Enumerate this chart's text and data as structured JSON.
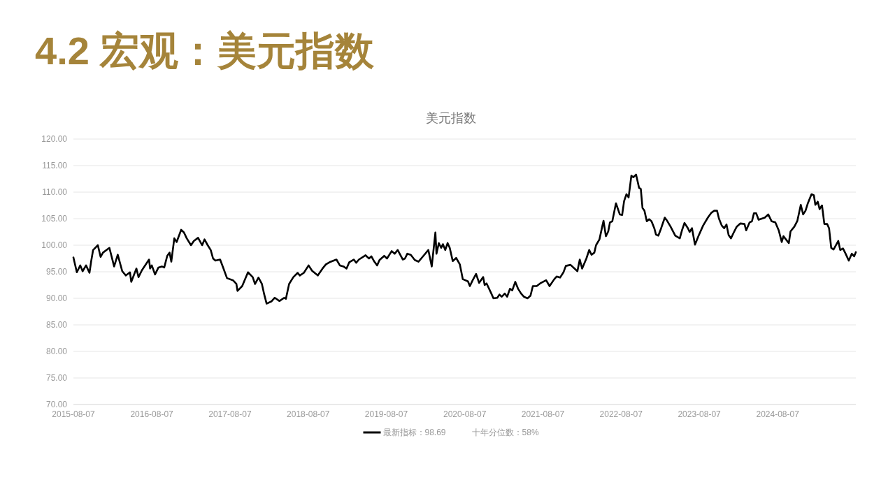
{
  "chart_data": {
    "type": "line",
    "title": "4.2 宏观：美元指数",
    "subtitle": "美元指数",
    "x": [
      "2015-08-07",
      "2015-08-23",
      "2015-09-08",
      "2015-09-19",
      "2015-10-05",
      "2015-10-21",
      "2015-10-29",
      "2015-11-07",
      "2015-11-29",
      "2015-12-12",
      "2015-12-23",
      "2016-01-22",
      "2016-02-13",
      "2016-03-01",
      "2016-03-22",
      "2016-04-08",
      "2016-04-27",
      "2016-05-03",
      "2016-05-27",
      "2016-06-06",
      "2016-06-22",
      "2016-07-25",
      "2016-07-30",
      "2016-08-07",
      "2016-08-22",
      "2016-09-07",
      "2016-09-23",
      "2016-10-04",
      "2016-10-18",
      "2016-10-29",
      "2016-11-06",
      "2016-11-20",
      "2016-12-01",
      "2016-12-22",
      "2017-01-04",
      "2017-01-17",
      "2017-02-06",
      "2017-02-19",
      "2017-03-11",
      "2017-03-30",
      "2017-04-10",
      "2017-04-25",
      "2017-05-09",
      "2017-05-20",
      "2017-05-31",
      "2017-06-22",
      "2017-07-06",
      "2017-07-24",
      "2017-08-21",
      "2017-09-06",
      "2017-09-11",
      "2017-10-03",
      "2017-10-30",
      "2017-11-21",
      "2017-12-02",
      "2017-12-18",
      "2018-01-03",
      "2018-01-14",
      "2018-01-25",
      "2018-02-16",
      "2018-03-04",
      "2018-03-26",
      "2018-04-17",
      "2018-04-25",
      "2018-05-10",
      "2018-05-30",
      "2018-06-19",
      "2018-06-29",
      "2018-07-18",
      "2018-08-09",
      "2018-08-25",
      "2018-09-21",
      "2018-10-13",
      "2018-10-29",
      "2018-11-15",
      "2018-12-17",
      "2019-01-02",
      "2019-01-19",
      "2019-02-02",
      "2019-02-15",
      "2019-03-08",
      "2019-03-19",
      "2019-04-01",
      "2019-05-02",
      "2019-05-18",
      "2019-05-29",
      "2019-06-12",
      "2019-06-25",
      "2019-07-06",
      "2019-07-28",
      "2019-08-10",
      "2019-09-01",
      "2019-09-15",
      "2019-09-29",
      "2019-10-23",
      "2019-11-02",
      "2019-11-13",
      "2019-11-29",
      "2019-12-18",
      "2020-01-04",
      "2020-01-23",
      "2020-02-19",
      "2020-03-06",
      "2020-03-23",
      "2020-03-28",
      "2020-04-08",
      "2020-04-19",
      "2020-04-27",
      "2020-05-08",
      "2020-05-19",
      "2020-05-29",
      "2020-06-12",
      "2020-06-28",
      "2020-07-15",
      "2020-07-29",
      "2020-08-22",
      "2020-08-31",
      "2020-09-13",
      "2020-09-29",
      "2020-10-13",
      "2020-11-01",
      "2020-11-08",
      "2020-11-17",
      "2020-12-08",
      "2020-12-19",
      "2021-01-06",
      "2021-01-16",
      "2021-01-27",
      "2021-02-10",
      "2021-02-21",
      "2021-03-06",
      "2021-03-17",
      "2021-03-31",
      "2021-04-13",
      "2021-04-27",
      "2021-05-10",
      "2021-05-27",
      "2021-06-10",
      "2021-06-21",
      "2021-07-09",
      "2021-07-25",
      "2021-08-22",
      "2021-09-07",
      "2021-09-29",
      "2021-10-10",
      "2021-10-26",
      "2021-11-11",
      "2021-11-22",
      "2021-12-14",
      "2022-01-15",
      "2022-01-26",
      "2022-02-06",
      "2022-02-26",
      "2022-03-11",
      "2022-03-22",
      "2022-04-04",
      "2022-04-12",
      "2022-04-28",
      "2022-05-13",
      "2022-05-17",
      "2022-05-28",
      "2022-06-08",
      "2022-06-16",
      "2022-06-27",
      "2022-07-14",
      "2022-08-01",
      "2022-08-12",
      "2022-08-21",
      "2022-09-01",
      "2022-09-11",
      "2022-09-24",
      "2022-10-03",
      "2022-10-16",
      "2022-10-30",
      "2022-11-07",
      "2022-11-15",
      "2022-11-24",
      "2022-12-05",
      "2022-12-16",
      "2022-12-27",
      "2023-01-09",
      "2023-01-17",
      "2023-01-28",
      "2023-02-10",
      "2023-02-27",
      "2023-03-10",
      "2023-03-26",
      "2023-04-17",
      "2023-05-08",
      "2023-05-19",
      "2023-05-30",
      "2023-06-15",
      "2023-06-23",
      "2023-07-04",
      "2023-07-18",
      "2023-08-03",
      "2023-08-25",
      "2023-09-16",
      "2023-10-02",
      "2023-10-16",
      "2023-10-29",
      "2023-11-07",
      "2023-11-20",
      "2023-12-01",
      "2023-12-12",
      "2023-12-22",
      "2024-01-02",
      "2024-01-15",
      "2024-01-29",
      "2024-02-15",
      "2024-03-05",
      "2024-03-13",
      "2024-03-29",
      "2024-04-09",
      "2024-04-18",
      "2024-04-29",
      "2024-05-10",
      "2024-06-08",
      "2024-06-24",
      "2024-07-10",
      "2024-07-27",
      "2024-08-12",
      "2024-08-26",
      "2024-09-03",
      "2024-09-28",
      "2024-10-06",
      "2024-10-24",
      "2024-11-07",
      "2024-11-23",
      "2024-12-04",
      "2024-12-15",
      "2024-12-26",
      "2025-01-12",
      "2025-01-23",
      "2025-01-30",
      "2025-02-10",
      "2025-02-19",
      "2025-03-02",
      "2025-03-13",
      "2025-03-26",
      "2025-04-04",
      "2025-04-14",
      "2025-04-25",
      "2025-05-17",
      "2025-05-26",
      "2025-06-08",
      "2025-06-19",
      "2025-07-05",
      "2025-07-19",
      "2025-07-30",
      "2025-08-07"
    ],
    "series": [
      {
        "name": "最新指标：98.69",
        "color": "#000000",
        "values": [
          97.7,
          94.9,
          96.2,
          95.1,
          96.2,
          94.8,
          97.0,
          99.1,
          100.0,
          97.8,
          98.6,
          99.5,
          96.0,
          98.2,
          95.1,
          94.3,
          94.9,
          93.1,
          95.6,
          94.0,
          95.3,
          97.3,
          95.6,
          96.2,
          94.5,
          95.8,
          96.0,
          95.8,
          98.0,
          98.6,
          96.9,
          101.3,
          100.6,
          102.9,
          102.4,
          101.3,
          100.0,
          100.8,
          101.4,
          100.0,
          101.1,
          100.0,
          99.1,
          97.5,
          97.1,
          97.3,
          95.8,
          93.8,
          93.4,
          92.7,
          91.4,
          92.3,
          94.9,
          94.0,
          92.7,
          93.9,
          92.7,
          90.7,
          89.0,
          89.4,
          90.1,
          89.5,
          90.1,
          89.9,
          92.7,
          94.0,
          94.8,
          94.3,
          94.8,
          96.2,
          95.2,
          94.3,
          95.6,
          96.4,
          96.8,
          97.3,
          96.2,
          96.0,
          95.6,
          96.8,
          97.3,
          96.7,
          97.3,
          98.1,
          97.5,
          97.9,
          96.9,
          96.2,
          97.2,
          98.0,
          97.5,
          98.9,
          98.4,
          99.1,
          97.3,
          97.5,
          98.4,
          98.2,
          97.2,
          96.9,
          97.8,
          99.1,
          96.0,
          102.4,
          98.4,
          100.4,
          99.5,
          100.2,
          99.1,
          100.4,
          99.5,
          97.0,
          97.6,
          96.4,
          93.6,
          93.2,
          92.3,
          93.4,
          94.6,
          92.9,
          94.0,
          92.5,
          92.8,
          91.0,
          90.0,
          90.1,
          90.7,
          90.3,
          90.9,
          90.3,
          91.8,
          91.5,
          93.1,
          91.8,
          90.9,
          90.3,
          90.0,
          90.5,
          92.3,
          92.3,
          92.8,
          93.4,
          92.3,
          93.6,
          94.1,
          93.9,
          94.9,
          96.1,
          96.3,
          95.1,
          97.3,
          95.6,
          97.5,
          99.1,
          98.2,
          98.6,
          100.0,
          101.1,
          103.9,
          104.6,
          101.7,
          102.6,
          104.3,
          104.5,
          107.9,
          105.8,
          105.7,
          108.3,
          109.6,
          109.0,
          113.1,
          112.8,
          113.3,
          110.8,
          110.6,
          107.0,
          106.5,
          104.5,
          104.9,
          104.5,
          103.2,
          102.0,
          101.8,
          103.2,
          105.2,
          104.6,
          103.5,
          101.8,
          101.3,
          102.9,
          104.2,
          103.2,
          102.5,
          103.2,
          100.1,
          101.7,
          103.7,
          105.2,
          106.1,
          106.5,
          106.5,
          105.0,
          103.7,
          103.2,
          103.9,
          101.9,
          101.3,
          102.4,
          103.5,
          104.1,
          104.0,
          102.8,
          104.3,
          104.5,
          106.0,
          106.0,
          104.8,
          105.2,
          105.8,
          104.5,
          104.3,
          102.8,
          100.6,
          101.7,
          100.4,
          102.6,
          103.5,
          104.6,
          107.6,
          105.8,
          106.5,
          107.9,
          109.6,
          109.4,
          107.6,
          108.2,
          106.8,
          107.5,
          104.0,
          104.0,
          103.2,
          99.5,
          99.2,
          100.8,
          99.1,
          99.4,
          98.5,
          97.1,
          98.4,
          97.9,
          98.69
        ]
      }
    ],
    "xlim": [
      "2015-08-07",
      "2025-08-07"
    ],
    "xticks": [
      "2015-08-07",
      "2016-08-07",
      "2017-08-07",
      "2018-08-07",
      "2019-08-07",
      "2020-08-07",
      "2021-08-07",
      "2022-08-07",
      "2023-08-07",
      "2024-08-07"
    ],
    "ylim": [
      70,
      120
    ],
    "yticks": [
      {
        "value": 70,
        "label": "70.00"
      },
      {
        "value": 75,
        "label": "75.00"
      },
      {
        "value": 80,
        "label": "80.00"
      },
      {
        "value": 85,
        "label": "85.00"
      },
      {
        "value": 90,
        "label": "90.00"
      },
      {
        "value": 95,
        "label": "95.00"
      },
      {
        "value": 100,
        "label": "100.00"
      },
      {
        "value": 105,
        "label": "105.00"
      },
      {
        "value": 110,
        "label": "110.00"
      },
      {
        "value": 115,
        "label": "115.00"
      },
      {
        "value": 120,
        "label": "120.00"
      }
    ],
    "grid": "y",
    "legend": "bottom",
    "annotations": [
      "十年分位数：58%"
    ]
  }
}
